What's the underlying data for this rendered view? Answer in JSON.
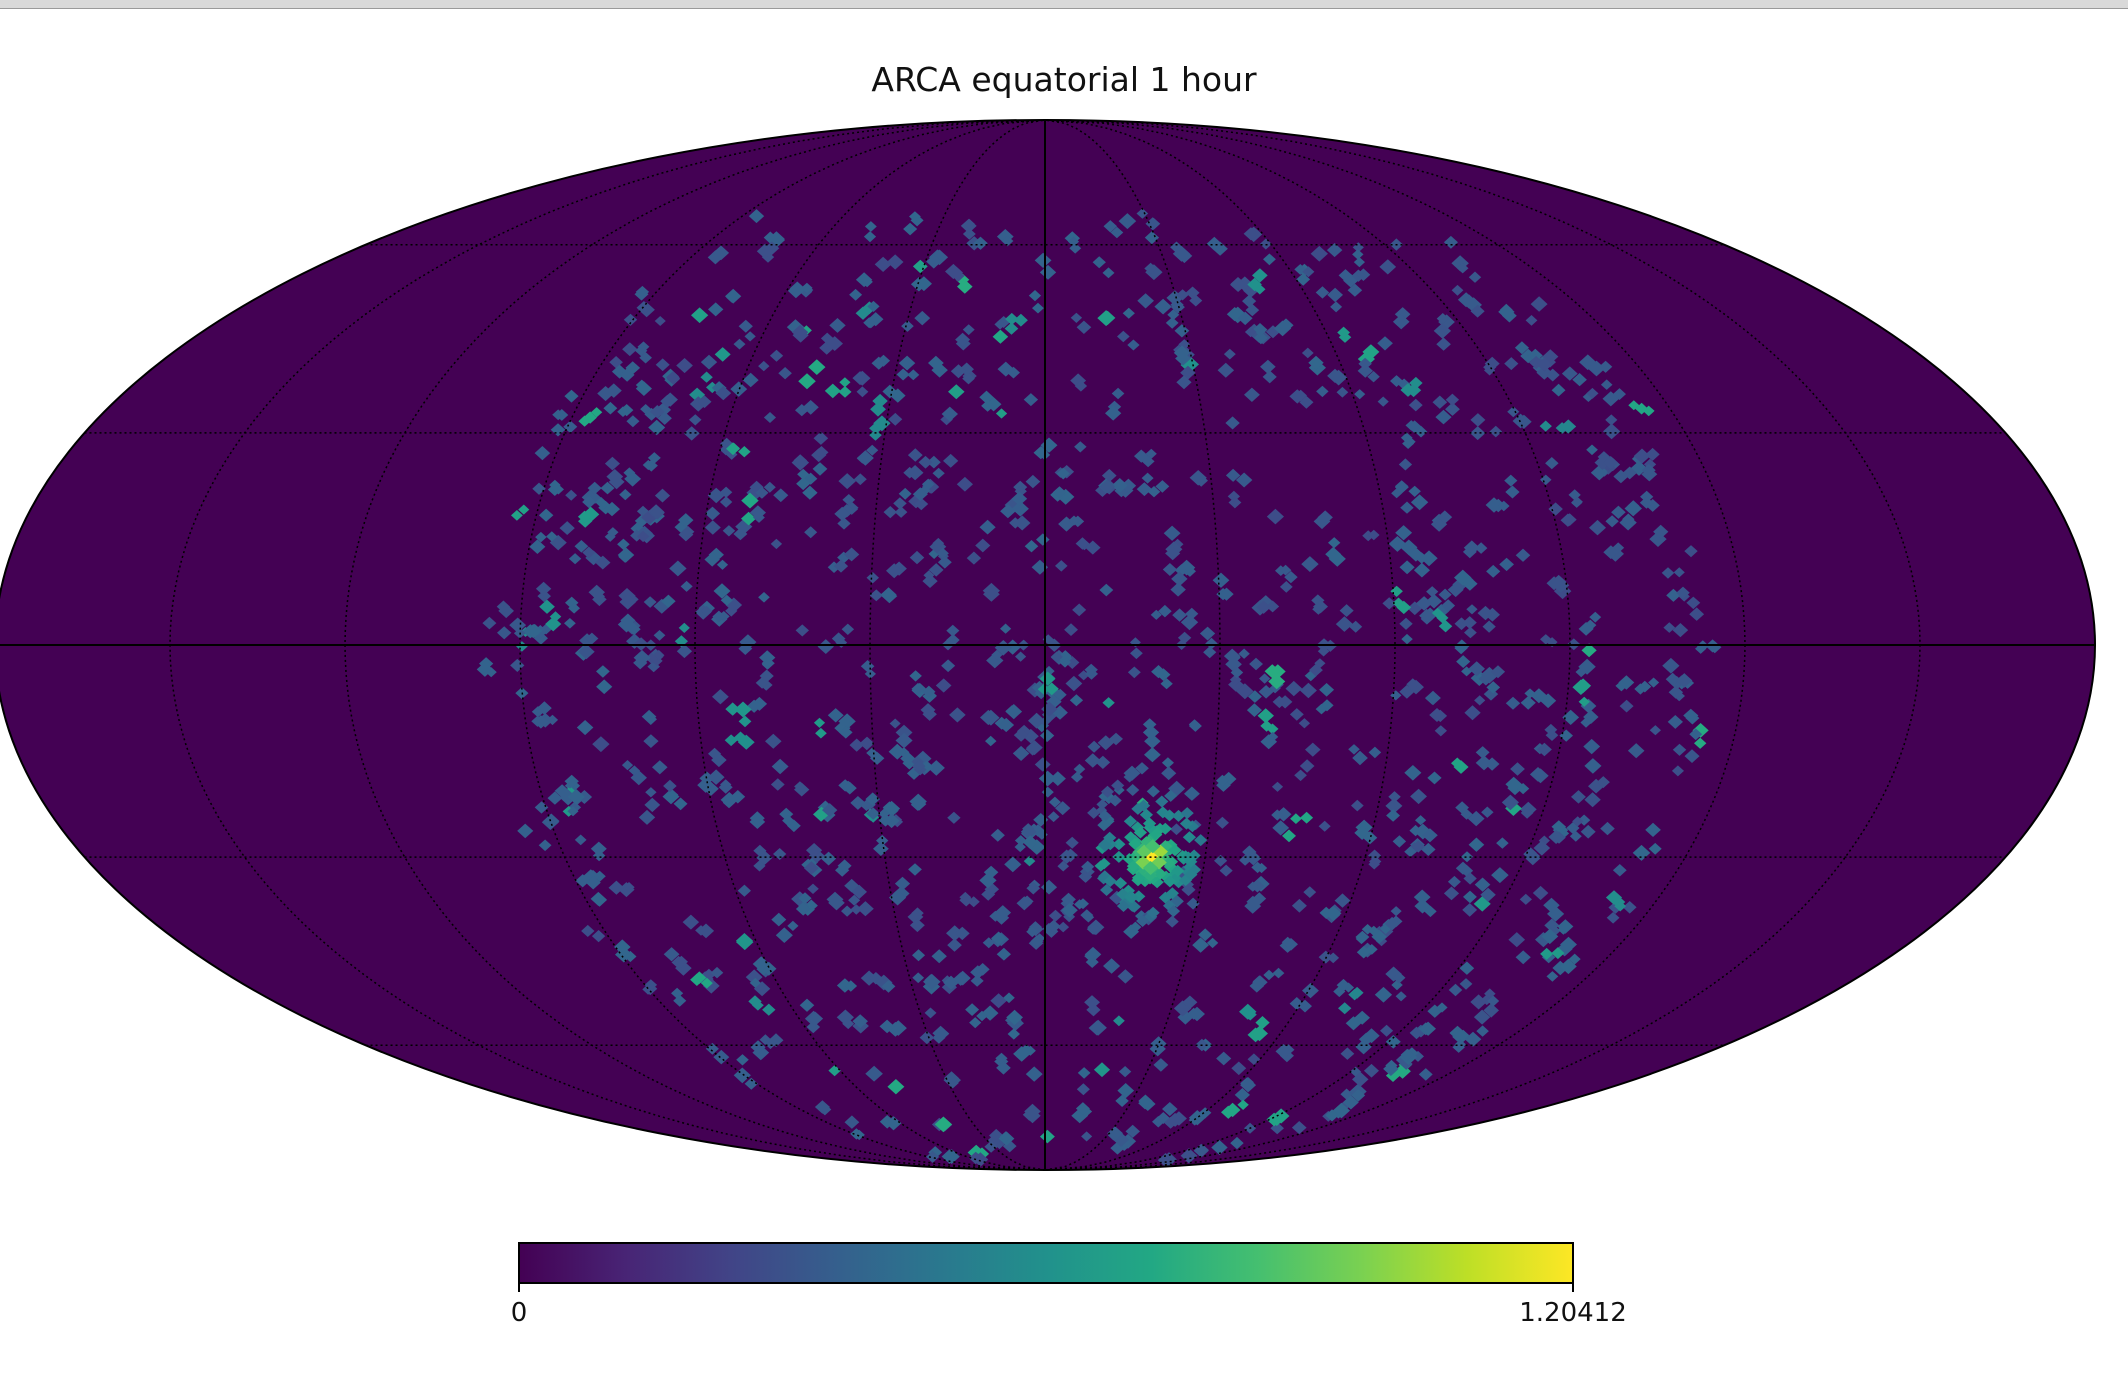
{
  "chart_data": {
    "type": "heatmap",
    "title": "ARCA equatorial 1 hour",
    "projection": "mollweide",
    "grid": true,
    "colormap": "viridis",
    "colorbar": {
      "min": 0,
      "max": 1.20412,
      "min_label": "0",
      "max_label": "1.20412"
    },
    "hotspot": {
      "lon_deg": 20,
      "lat_deg": -30,
      "peak_value": 1.20412
    },
    "counts_region": {
      "lon_range_deg": [
        -95,
        115
      ],
      "lat_range_deg": [
        -90,
        65
      ],
      "note_value_range": [
        0.2,
        0.7
      ]
    },
    "empty_value": 0
  },
  "colors": {
    "background": "#ffffff",
    "map_empty": "#440154",
    "viridis_stops": [
      "#440154",
      "#482475",
      "#414487",
      "#355f8d",
      "#2a788e",
      "#21918c",
      "#22a884",
      "#44bf70",
      "#7ad151",
      "#bddf26",
      "#fde725"
    ]
  }
}
